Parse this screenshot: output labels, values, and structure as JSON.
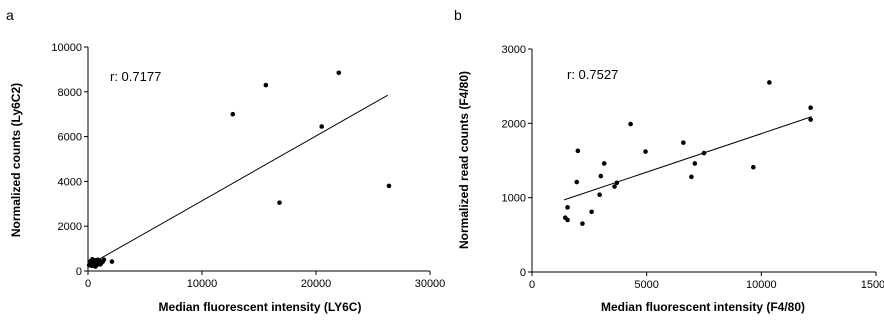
{
  "chart_data": [
    {
      "type": "scatter",
      "panel": "a",
      "xlabel": "Median fluorescent intensity (LY6C)",
      "ylabel": "Normalized counts (Ly6C2)",
      "annotation": "r: 0.7177",
      "xlim": [
        0,
        30000
      ],
      "ylim": [
        0,
        10000
      ],
      "xticks": [
        0,
        10000,
        20000,
        30000
      ],
      "yticks": [
        0,
        2000,
        4000,
        6000,
        8000,
        10000
      ],
      "xtick_labels": [
        "0",
        "10000",
        "20000",
        "30000"
      ],
      "ytick_labels": [
        "0",
        "2000",
        "4000",
        "6000",
        "8000",
        "10000"
      ],
      "fit_line": {
        "x": [
          200,
          26300
        ],
        "y": [
          300,
          7850
        ]
      },
      "points": [
        {
          "x": 12700,
          "y": 7000
        },
        {
          "x": 15600,
          "y": 8300
        },
        {
          "x": 16800,
          "y": 3050
        },
        {
          "x": 20500,
          "y": 6450
        },
        {
          "x": 22000,
          "y": 8850
        },
        {
          "x": 26400,
          "y": 3800
        },
        {
          "x": 2100,
          "y": 420
        },
        {
          "x": 1400,
          "y": 500
        },
        {
          "x": 1200,
          "y": 380
        },
        {
          "x": 1000,
          "y": 460
        },
        {
          "x": 900,
          "y": 300
        },
        {
          "x": 800,
          "y": 420
        },
        {
          "x": 700,
          "y": 350
        },
        {
          "x": 600,
          "y": 480
        },
        {
          "x": 550,
          "y": 250
        },
        {
          "x": 500,
          "y": 400
        },
        {
          "x": 450,
          "y": 320
        },
        {
          "x": 400,
          "y": 450
        },
        {
          "x": 350,
          "y": 230
        },
        {
          "x": 300,
          "y": 380
        },
        {
          "x": 250,
          "y": 280
        },
        {
          "x": 200,
          "y": 430
        },
        {
          "x": 150,
          "y": 330
        },
        {
          "x": 100,
          "y": 260
        },
        {
          "x": 650,
          "y": 200
        },
        {
          "x": 750,
          "y": 270
        },
        {
          "x": 850,
          "y": 500
        },
        {
          "x": 1100,
          "y": 300
        },
        {
          "x": 1300,
          "y": 420
        },
        {
          "x": 380,
          "y": 520
        }
      ]
    },
    {
      "type": "scatter",
      "panel": "b",
      "xlabel": "Median fluorescent intensity (F4/80)",
      "ylabel": "Normalized read counts (F4/80)",
      "annotation": "r: 0.7527",
      "xlim": [
        0,
        15000
      ],
      "ylim": [
        0,
        3000
      ],
      "xticks": [
        0,
        5000,
        10000,
        15000
      ],
      "yticks": [
        0,
        1000,
        2000,
        3000
      ],
      "xtick_labels": [
        "0",
        "5000",
        "10000",
        "15000"
      ],
      "ytick_labels": [
        "0",
        "1000",
        "2000",
        "3000"
      ],
      "fit_line": {
        "x": [
          1400,
          12200
        ],
        "y": [
          970,
          2090
        ]
      },
      "points": [
        {
          "x": 1450,
          "y": 730
        },
        {
          "x": 1550,
          "y": 700
        },
        {
          "x": 1550,
          "y": 870
        },
        {
          "x": 1950,
          "y": 1210
        },
        {
          "x": 2000,
          "y": 1630
        },
        {
          "x": 2200,
          "y": 650
        },
        {
          "x": 2600,
          "y": 810
        },
        {
          "x": 2950,
          "y": 1040
        },
        {
          "x": 3000,
          "y": 1290
        },
        {
          "x": 3150,
          "y": 1460
        },
        {
          "x": 3600,
          "y": 1150
        },
        {
          "x": 3700,
          "y": 1200
        },
        {
          "x": 4300,
          "y": 1990
        },
        {
          "x": 4950,
          "y": 1620
        },
        {
          "x": 6600,
          "y": 1740
        },
        {
          "x": 6950,
          "y": 1280
        },
        {
          "x": 7100,
          "y": 1460
        },
        {
          "x": 7500,
          "y": 1600
        },
        {
          "x": 9650,
          "y": 1410
        },
        {
          "x": 10350,
          "y": 2550
        },
        {
          "x": 12150,
          "y": 2210
        },
        {
          "x": 12150,
          "y": 2050
        }
      ]
    }
  ]
}
